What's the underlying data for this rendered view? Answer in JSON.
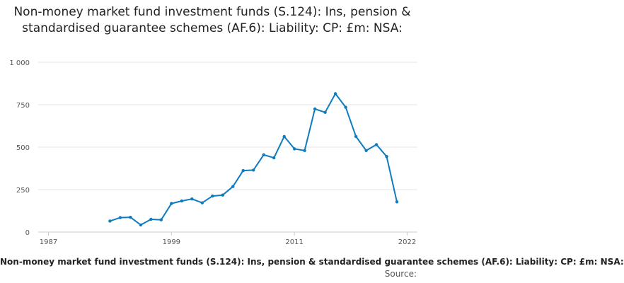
{
  "chart_data": {
    "type": "line",
    "title": "Non-money market fund investment funds (S.124): Ins, pension & standardised guarantee schemes (AF.6): Liability: CP: £m: NSA:",
    "xlabel": "",
    "ylabel": "",
    "xlim": [
      1986,
      2023
    ],
    "ylim": [
      0,
      1000
    ],
    "x_ticks": [
      1987,
      1999,
      2011,
      2022
    ],
    "y_ticks": [
      {
        "value": 0,
        "label": "0"
      },
      {
        "value": 250,
        "label": "250"
      },
      {
        "value": 500,
        "label": "500"
      },
      {
        "value": 750,
        "label": "750"
      },
      {
        "value": 1000,
        "label": "1 000"
      }
    ],
    "grid": true,
    "legend_position": "bottom",
    "series": [
      {
        "name": "Non-money market fund investment funds (S.124): Ins, pension & standardised guarantee schemes (AF.6): Liability: CP: £m: NSA:",
        "color": "#0f7bbf",
        "points": [
          {
            "x": 1993,
            "y": 65
          },
          {
            "x": 1994,
            "y": 85
          },
          {
            "x": 1995,
            "y": 87
          },
          {
            "x": 1996,
            "y": 42
          },
          {
            "x": 1997,
            "y": 75
          },
          {
            "x": 1998,
            "y": 72
          },
          {
            "x": 1999,
            "y": 168
          },
          {
            "x": 2000,
            "y": 183
          },
          {
            "x": 2001,
            "y": 195
          },
          {
            "x": 2002,
            "y": 172
          },
          {
            "x": 2003,
            "y": 212
          },
          {
            "x": 2004,
            "y": 218
          },
          {
            "x": 2005,
            "y": 268
          },
          {
            "x": 2006,
            "y": 362
          },
          {
            "x": 2007,
            "y": 365
          },
          {
            "x": 2008,
            "y": 455
          },
          {
            "x": 2009,
            "y": 437
          },
          {
            "x": 2010,
            "y": 563
          },
          {
            "x": 2011,
            "y": 490
          },
          {
            "x": 2012,
            "y": 480
          },
          {
            "x": 2013,
            "y": 725
          },
          {
            "x": 2014,
            "y": 705
          },
          {
            "x": 2015,
            "y": 815
          },
          {
            "x": 2016,
            "y": 735
          },
          {
            "x": 2017,
            "y": 563
          },
          {
            "x": 2018,
            "y": 480
          },
          {
            "x": 2019,
            "y": 515
          },
          {
            "x": 2020,
            "y": 445
          },
          {
            "x": 2021,
            "y": 178
          }
        ]
      }
    ],
    "legend_label": "Non-money market fund investment funds (S.124): Ins, pension & standardised guarantee schemes (AF.6): Liability: CP: £m: NSA:",
    "source_label": "Source:"
  }
}
